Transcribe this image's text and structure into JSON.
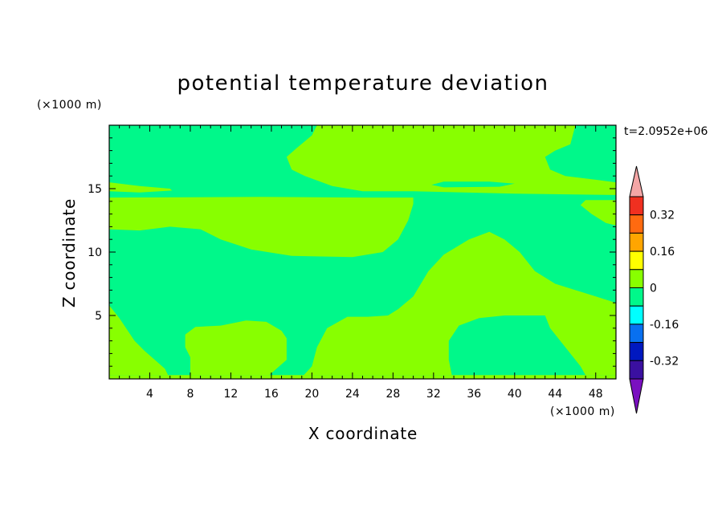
{
  "chart_data": {
    "type": "heatmap",
    "title": "potential temperature deviation",
    "xlabel": "X coordinate",
    "ylabel": "Z coordinate",
    "x_unit": "(×1000 m)",
    "y_unit": "(×1000 m)",
    "time_label": "t=2.0952e+06",
    "xlim": [
      0,
      50
    ],
    "ylim": [
      0,
      20
    ],
    "x_ticks": [
      4,
      8,
      12,
      16,
      20,
      24,
      28,
      32,
      36,
      40,
      44,
      48
    ],
    "y_ticks": [
      5,
      10,
      15
    ],
    "background_level": "-0.08..0",
    "colorbar": {
      "labels": [
        "0.32",
        "0.16",
        "0",
        "-0.16",
        "-0.32"
      ],
      "label_values": [
        0.32,
        0.16,
        0,
        -0.16,
        -0.32
      ],
      "levels": [
        {
          "range": "> 0.40",
          "color": "#f4a6a6"
        },
        {
          "range": "0.32..0.40",
          "color": "#f03020"
        },
        {
          "range": "0.24..0.32",
          "color": "#ff6a10"
        },
        {
          "range": "0.16..0.24",
          "color": "#ffa500"
        },
        {
          "range": "0.08..0.16",
          "color": "#ffff00"
        },
        {
          "range": "0..0.08",
          "color": "#88ff00"
        },
        {
          "range": "-0.08..0",
          "color": "#00f88a"
        },
        {
          "range": "-0.16..-0.08",
          "color": "#00ffff"
        },
        {
          "range": "-0.24..-0.16",
          "color": "#0870f0"
        },
        {
          "range": "-0.32..-0.24",
          "color": "#0018c0"
        },
        {
          "range": "-0.40..-0.32",
          "color": "#3a10a0"
        },
        {
          "range": "< -0.40",
          "color": "#7a10c0"
        }
      ]
    },
    "regions": [
      {
        "level": "0..0.08",
        "points": [
          [
            19.3,
            16
          ],
          [
            18,
            16.5
          ],
          [
            17.5,
            17.5
          ],
          [
            18.5,
            18.2
          ],
          [
            20,
            19.2
          ],
          [
            20.5,
            20
          ],
          [
            46,
            20
          ],
          [
            45.5,
            18.5
          ],
          [
            44,
            18
          ],
          [
            43,
            17.5
          ],
          [
            43.5,
            16.5
          ],
          [
            45,
            16
          ],
          [
            48,
            15.7
          ],
          [
            50,
            15.5
          ],
          [
            50,
            14.5
          ],
          [
            40,
            14.6
          ],
          [
            30,
            14.8
          ],
          [
            25,
            14.8
          ],
          [
            22,
            15.2
          ],
          [
            19.3,
            16
          ]
        ]
      },
      {
        "level": "-0.08..0",
        "points": [
          [
            31.8,
            15.3
          ],
          [
            33,
            15.55
          ],
          [
            37.5,
            15.55
          ],
          [
            40,
            15.4
          ],
          [
            38.5,
            15.15
          ],
          [
            33,
            15.1
          ],
          [
            31.8,
            15.3
          ]
        ]
      },
      {
        "level": "0..0.08",
        "points": [
          [
            0,
            15.5
          ],
          [
            3,
            15.2
          ],
          [
            6,
            15
          ],
          [
            6.2,
            14.85
          ],
          [
            3,
            14.7
          ],
          [
            0,
            14.8
          ]
        ]
      },
      {
        "level": "0..0.08",
        "points": [
          [
            0,
            14.3
          ],
          [
            15,
            14.35
          ],
          [
            25,
            14.3
          ],
          [
            30,
            14.3
          ],
          [
            30,
            13.8
          ],
          [
            29.5,
            12.5
          ],
          [
            28.5,
            11
          ],
          [
            27,
            10
          ],
          [
            24,
            9.6
          ],
          [
            18,
            9.7
          ],
          [
            14,
            10.2
          ],
          [
            11,
            11
          ],
          [
            9,
            11.8
          ],
          [
            6,
            12
          ],
          [
            3,
            11.7
          ],
          [
            0,
            11.8
          ]
        ]
      },
      {
        "level": "0..0.08",
        "points": [
          [
            47,
            14.1
          ],
          [
            50,
            14.1
          ],
          [
            50,
            12.1
          ],
          [
            49,
            12.3
          ],
          [
            47.6,
            13
          ],
          [
            46.5,
            13.7
          ],
          [
            47,
            14.1
          ]
        ]
      },
      {
        "level": "0..0.08",
        "points": [
          [
            0,
            0.3
          ],
          [
            0,
            5.8
          ],
          [
            1,
            4.8
          ],
          [
            2.5,
            3
          ],
          [
            3.5,
            2.2
          ],
          [
            4.5,
            1.5
          ],
          [
            5.5,
            0.8
          ],
          [
            5.8,
            0.3
          ]
        ]
      },
      {
        "level": "0..0.08",
        "points": [
          [
            8,
            0.3
          ],
          [
            8,
            1.7
          ],
          [
            7.5,
            2.5
          ],
          [
            7.5,
            3.5
          ],
          [
            8.5,
            4.1
          ],
          [
            11,
            4.2
          ],
          [
            13.5,
            4.6
          ],
          [
            15.5,
            4.5
          ],
          [
            17,
            3.8
          ],
          [
            17.5,
            3.2
          ],
          [
            17.5,
            1.5
          ],
          [
            16.5,
            0.8
          ],
          [
            15.8,
            0.3
          ]
        ]
      },
      {
        "level": "0..0.08",
        "points": [
          [
            19.2,
            0.3
          ],
          [
            20,
            1
          ],
          [
            20.5,
            2.5
          ],
          [
            21.5,
            4
          ],
          [
            23.5,
            4.9
          ],
          [
            25.5,
            4.9
          ],
          [
            27.5,
            5
          ],
          [
            28.5,
            5.5
          ],
          [
            30,
            6.5
          ],
          [
            31.5,
            8.5
          ],
          [
            33,
            9.8
          ],
          [
            35.5,
            11
          ],
          [
            37.5,
            11.6
          ],
          [
            39,
            11
          ],
          [
            40.5,
            10
          ],
          [
            42,
            8.5
          ],
          [
            44,
            7.5
          ],
          [
            46,
            7
          ],
          [
            48,
            6.5
          ],
          [
            50,
            6
          ],
          [
            50,
            0.3
          ],
          [
            47,
            0.3
          ],
          [
            46.5,
            1
          ],
          [
            45,
            2.5
          ],
          [
            43.5,
            4
          ],
          [
            43,
            5
          ],
          [
            41.5,
            5
          ],
          [
            39,
            5
          ],
          [
            36.5,
            4.8
          ],
          [
            34.5,
            4.2
          ],
          [
            33.5,
            3
          ],
          [
            33.5,
            1.5
          ],
          [
            33.8,
            0.3
          ]
        ]
      }
    ],
    "baseline_strip": {
      "level": "0..0.08",
      "z_range": [
        0,
        0.3
      ]
    }
  }
}
